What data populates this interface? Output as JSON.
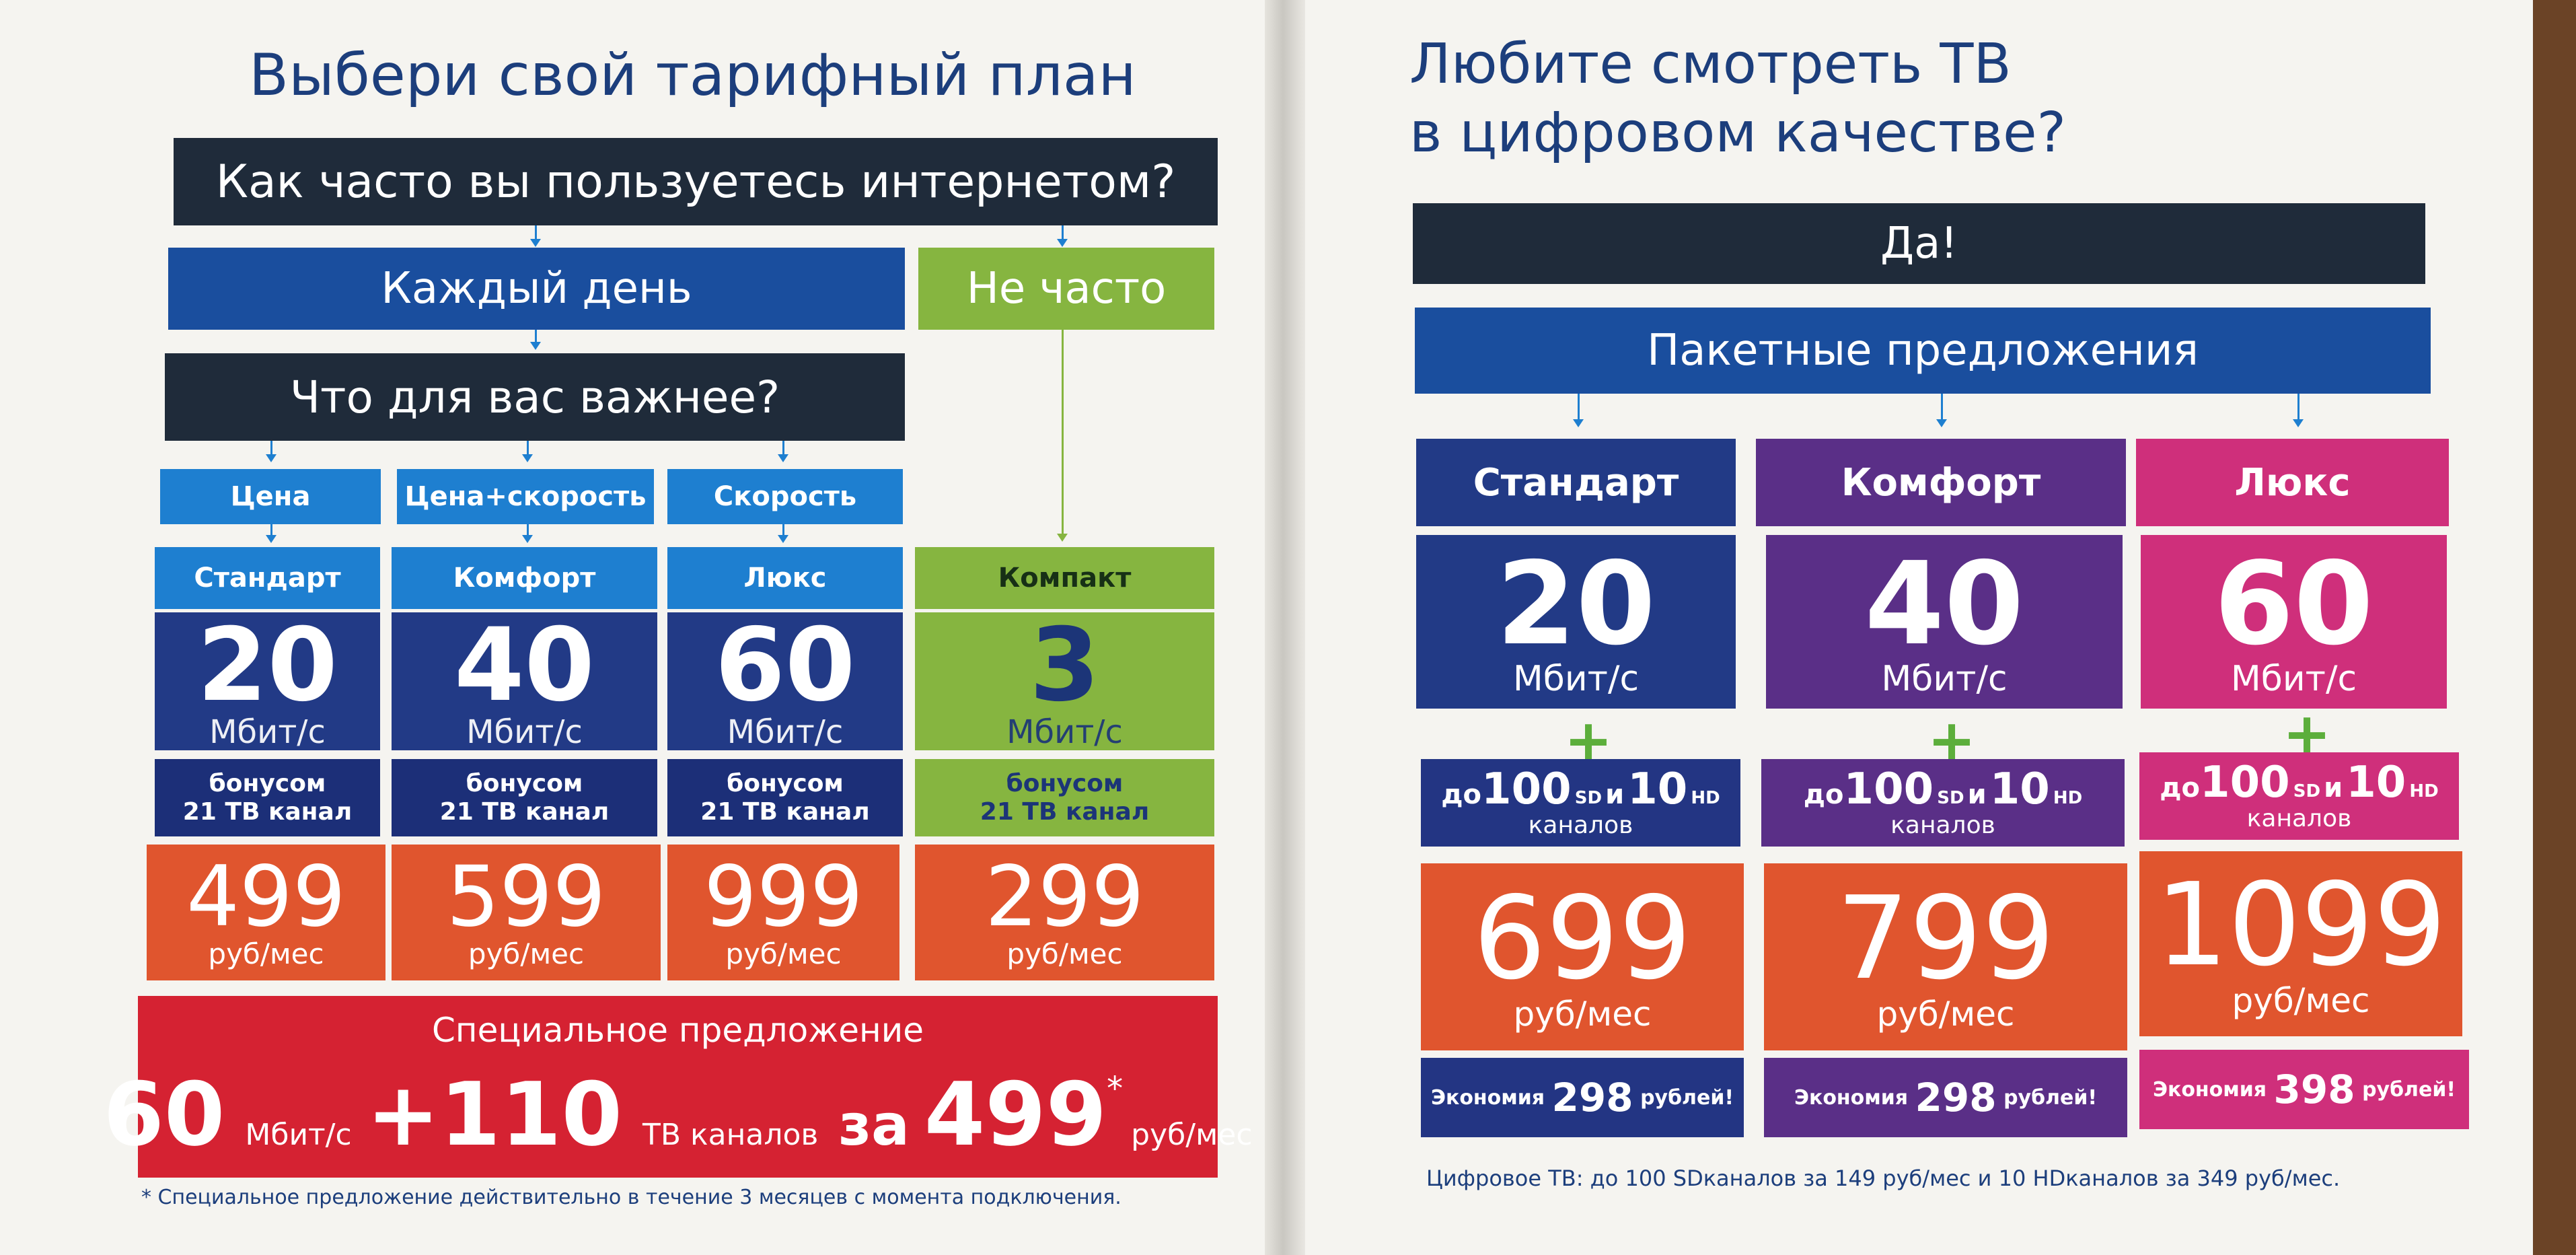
{
  "left": {
    "heading": "Выбери свой тарифный план",
    "question": "Как часто вы пользуетесь интернетом?",
    "daily": "Каждый день",
    "rare": "Не часто",
    "important_q": "Что для вас важнее?",
    "criteria": [
      "Цена",
      "Цена+скорость",
      "Скорость"
    ],
    "plans": [
      {
        "name": "Стандарт",
        "speed": "20",
        "unit": "Мбит/с",
        "bonus1": "бонусом",
        "bonus2": "21 ТВ канал",
        "price": "499",
        "price_unit": "руб/мес"
      },
      {
        "name": "Комфорт",
        "speed": "40",
        "unit": "Мбит/с",
        "bonus1": "бонусом",
        "bonus2": "21 ТВ канал",
        "price": "599",
        "price_unit": "руб/мес"
      },
      {
        "name": "Люкс",
        "speed": "60",
        "unit": "Мбит/с",
        "bonus1": "бонусом",
        "bonus2": "21 ТВ канал",
        "price": "999",
        "price_unit": "руб/мес"
      },
      {
        "name": "Компакт",
        "speed": "3",
        "unit": "Мбит/с",
        "bonus1": "бонусом",
        "bonus2": "21 ТВ канал",
        "price": "299",
        "price_unit": "руб/мес"
      }
    ],
    "special": {
      "title": "Специальное предложение",
      "speed": "60",
      "speed_unit": "Мбит/с",
      "channels": "+110",
      "channels_label": "ТВ каналов",
      "for": "за",
      "price": "499",
      "asterisk": "*",
      "price_unit": "руб/мес"
    },
    "footnote": "* Специальное предложение действительно в течение 3 месяцев с момента подключения."
  },
  "right": {
    "heading_line1": "Любите смотреть ТВ",
    "heading_line2": "в цифровом качестве?",
    "yes": "Да!",
    "packages": "Пакетные предложения",
    "plans": [
      {
        "name": "Стандарт",
        "speed": "20",
        "unit": "Мбит/с",
        "ch_prefix": "до",
        "sd": "100",
        "sd_label": "SD",
        "and": "и",
        "hd": "10",
        "hd_label": "HD",
        "ch_suffix": "каналов",
        "price": "699",
        "price_unit": "руб/мес",
        "saving_pre": "Экономия",
        "saving": "298",
        "saving_post": "рублей!"
      },
      {
        "name": "Комфорт",
        "speed": "40",
        "unit": "Мбит/с",
        "ch_prefix": "до",
        "sd": "100",
        "sd_label": "SD",
        "and": "и",
        "hd": "10",
        "hd_label": "HD",
        "ch_suffix": "каналов",
        "price": "799",
        "price_unit": "руб/мес",
        "saving_pre": "Экономия",
        "saving": "298",
        "saving_post": "рублей!"
      },
      {
        "name": "Люкс",
        "speed": "60",
        "unit": "Мбит/с",
        "ch_prefix": "до",
        "sd": "100",
        "sd_label": "SD",
        "and": "и",
        "hd": "10",
        "hd_label": "HD",
        "ch_suffix": "каналов",
        "price": "1099",
        "price_unit": "руб/мес",
        "saving_pre": "Экономия",
        "saving": "398",
        "saving_post": "рублей!"
      }
    ],
    "plus": "+",
    "footnote": "Цифровое ТВ: до 100 SDканалов за 149 руб/мес и 10 HDканалов за 349 руб/мес."
  }
}
